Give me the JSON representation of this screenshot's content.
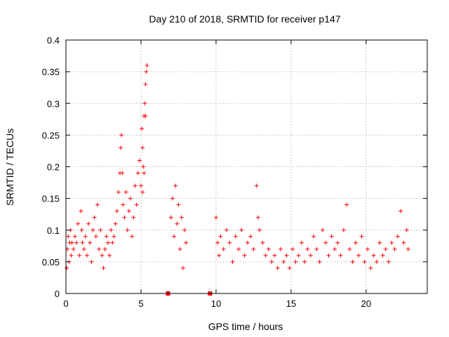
{
  "chart_data": {
    "type": "scatter",
    "title": "Day 210 of 2018, SRMTID for receiver p147",
    "xlabel": "GPS time / hours",
    "ylabel": "SRMTID / TECUs",
    "xlim": [
      0,
      24.07
    ],
    "ylim": [
      0,
      0.4
    ],
    "x_ticks": [
      0,
      5,
      10,
      15,
      20
    ],
    "x_tick_labels": [
      "0",
      "5",
      "10",
      "15",
      "20"
    ],
    "y_ticks": [
      0,
      0.05,
      0.1,
      0.15,
      0.2,
      0.25,
      0.3,
      0.35,
      0.4
    ],
    "y_tick_labels": [
      "0",
      "0.05",
      "0.1",
      "0.15",
      "0.2",
      "0.25",
      "0.3",
      "0.35",
      "0.4"
    ],
    "grid": true,
    "marker": "plus",
    "color": "#ff0000",
    "series": [
      {
        "name": "SRMTID",
        "points": [
          [
            0.05,
            0.04
          ],
          [
            0.1,
            0.07
          ],
          [
            0.15,
            0.09
          ],
          [
            0.2,
            0.05
          ],
          [
            0.25,
            0.08
          ],
          [
            0.3,
            0.1
          ],
          [
            0.35,
            0.06
          ],
          [
            0.4,
            0.08
          ],
          [
            0.5,
            0.07
          ],
          [
            0.6,
            0.09
          ],
          [
            0.7,
            0.08
          ],
          [
            0.8,
            0.11
          ],
          [
            0.9,
            0.06
          ],
          [
            1.0,
            0.13
          ],
          [
            1.05,
            0.1
          ],
          [
            1.1,
            0.08
          ],
          [
            1.2,
            0.07
          ],
          [
            1.3,
            0.09
          ],
          [
            1.4,
            0.06
          ],
          [
            1.5,
            0.11
          ],
          [
            1.6,
            0.08
          ],
          [
            1.7,
            0.05
          ],
          [
            1.8,
            0.1
          ],
          [
            1.9,
            0.12
          ],
          [
            2.0,
            0.09
          ],
          [
            2.1,
            0.14
          ],
          [
            2.2,
            0.07
          ],
          [
            2.3,
            0.1
          ],
          [
            2.4,
            0.06
          ],
          [
            2.5,
            0.04
          ],
          [
            2.6,
            0.07
          ],
          [
            2.7,
            0.09
          ],
          [
            2.8,
            0.08
          ],
          [
            2.9,
            0.06
          ],
          [
            3.0,
            0.1
          ],
          [
            3.1,
            0.08
          ],
          [
            3.2,
            0.09
          ],
          [
            3.3,
            0.11
          ],
          [
            3.4,
            0.13
          ],
          [
            3.5,
            0.16
          ],
          [
            3.6,
            0.19
          ],
          [
            3.65,
            0.23
          ],
          [
            3.7,
            0.25
          ],
          [
            3.75,
            0.19
          ],
          [
            3.8,
            0.14
          ],
          [
            3.9,
            0.12
          ],
          [
            4.0,
            0.16
          ],
          [
            4.1,
            0.1
          ],
          [
            4.2,
            0.13
          ],
          [
            4.3,
            0.15
          ],
          [
            4.4,
            0.09
          ],
          [
            4.5,
            0.12
          ],
          [
            4.6,
            0.17
          ],
          [
            4.7,
            0.14
          ],
          [
            4.8,
            0.19
          ],
          [
            4.9,
            0.21
          ],
          [
            5.0,
            0.17
          ],
          [
            5.05,
            0.26
          ],
          [
            5.1,
            0.23
          ],
          [
            5.15,
            0.2
          ],
          [
            5.2,
            0.28
          ],
          [
            5.25,
            0.3
          ],
          [
            5.3,
            0.33
          ],
          [
            5.35,
            0.35
          ],
          [
            5.4,
            0.36
          ],
          [
            5.3,
            0.28
          ],
          [
            5.2,
            0.19
          ],
          [
            5.1,
            0.16
          ],
          [
            7.0,
            0.12
          ],
          [
            7.1,
            0.15
          ],
          [
            7.2,
            0.09
          ],
          [
            7.3,
            0.17
          ],
          [
            7.4,
            0.11
          ],
          [
            7.5,
            0.14
          ],
          [
            7.6,
            0.07
          ],
          [
            7.7,
            0.12
          ],
          [
            7.8,
            0.04
          ],
          [
            7.9,
            0.1
          ],
          [
            8.0,
            0.08
          ],
          [
            10.0,
            0.12
          ],
          [
            10.1,
            0.08
          ],
          [
            10.2,
            0.06
          ],
          [
            10.3,
            0.09
          ],
          [
            10.5,
            0.07
          ],
          [
            10.7,
            0.1
          ],
          [
            10.9,
            0.08
          ],
          [
            11.1,
            0.05
          ],
          [
            11.3,
            0.09
          ],
          [
            11.5,
            0.07
          ],
          [
            11.7,
            0.1
          ],
          [
            11.9,
            0.06
          ],
          [
            12.1,
            0.08
          ],
          [
            12.3,
            0.09
          ],
          [
            12.5,
            0.07
          ],
          [
            12.7,
            0.17
          ],
          [
            12.8,
            0.12
          ],
          [
            12.9,
            0.1
          ],
          [
            13.1,
            0.08
          ],
          [
            13.3,
            0.06
          ],
          [
            13.5,
            0.07
          ],
          [
            13.7,
            0.05
          ],
          [
            13.9,
            0.06
          ],
          [
            14.1,
            0.04
          ],
          [
            14.3,
            0.07
          ],
          [
            14.5,
            0.05
          ],
          [
            14.7,
            0.06
          ],
          [
            14.9,
            0.04
          ],
          [
            15.1,
            0.07
          ],
          [
            15.3,
            0.05
          ],
          [
            15.5,
            0.06
          ],
          [
            15.7,
            0.08
          ],
          [
            15.9,
            0.05
          ],
          [
            16.1,
            0.07
          ],
          [
            16.3,
            0.06
          ],
          [
            16.5,
            0.09
          ],
          [
            16.7,
            0.07
          ],
          [
            16.9,
            0.05
          ],
          [
            17.1,
            0.1
          ],
          [
            17.3,
            0.08
          ],
          [
            17.5,
            0.06
          ],
          [
            17.7,
            0.09
          ],
          [
            17.9,
            0.07
          ],
          [
            18.1,
            0.08
          ],
          [
            18.3,
            0.06
          ],
          [
            18.5,
            0.1
          ],
          [
            18.7,
            0.14
          ],
          [
            18.9,
            0.07
          ],
          [
            19.1,
            0.05
          ],
          [
            19.3,
            0.08
          ],
          [
            19.5,
            0.06
          ],
          [
            19.7,
            0.09
          ],
          [
            19.9,
            0.05
          ],
          [
            20.1,
            0.07
          ],
          [
            20.3,
            0.04
          ],
          [
            20.5,
            0.06
          ],
          [
            20.7,
            0.05
          ],
          [
            20.9,
            0.08
          ],
          [
            21.1,
            0.06
          ],
          [
            21.3,
            0.07
          ],
          [
            21.5,
            0.05
          ],
          [
            21.7,
            0.08
          ],
          [
            21.9,
            0.07
          ],
          [
            22.1,
            0.09
          ],
          [
            22.3,
            0.13
          ],
          [
            22.5,
            0.08
          ],
          [
            22.7,
            0.1
          ],
          [
            22.8,
            0.07
          ]
        ]
      }
    ],
    "zero_markers": [
      [
        6.8,
        0.0
      ],
      [
        9.6,
        0.0
      ]
    ]
  }
}
